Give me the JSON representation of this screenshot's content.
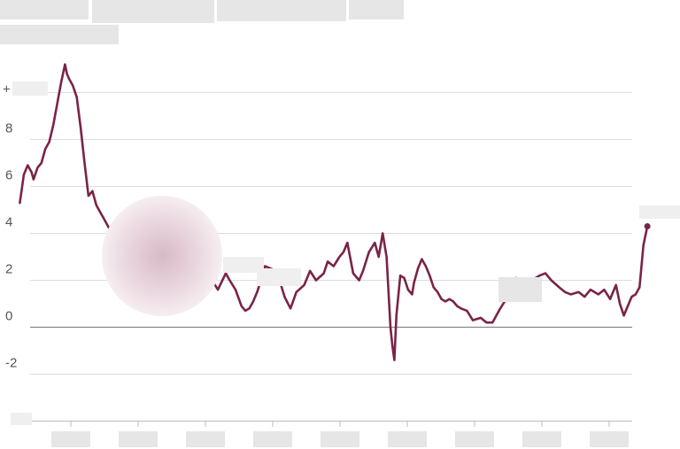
{
  "chart_data": {
    "type": "line",
    "title": "",
    "subtitle": "",
    "xlabel": "",
    "ylabel": "",
    "ylim": [
      -4,
      11.5
    ],
    "xlim": [
      1989.3,
      2021.9
    ],
    "yticks": [
      {
        "value": 8,
        "label": "8"
      },
      {
        "value": 6,
        "label": "6"
      },
      {
        "value": 4,
        "label": "4"
      },
      {
        "value": 2,
        "label": "2"
      },
      {
        "value": 0,
        "label": "0"
      },
      {
        "value": -2,
        "label": "-2"
      }
    ],
    "top_tick_prefix": "+",
    "end_label_prefix": "+",
    "grid": true,
    "line_color": "#7a2348",
    "series": [
      {
        "x": [
          1989.5,
          1989.7,
          1989.9,
          1990.1,
          1990.2,
          1990.4,
          1990.6,
          1990.8,
          1991.0,
          1991.2,
          1991.4,
          1991.6,
          1991.8,
          1991.9,
          1992.0,
          1992.2,
          1992.4,
          1992.6,
          1992.8,
          1993.0,
          1993.2,
          1993.4,
          1993.6,
          1993.8,
          1994.0,
          1994.3,
          1994.6,
          1995.0,
          1995.3,
          1995.6,
          1996.0,
          1996.2,
          1996.4,
          1996.6,
          1996.8,
          1997.0,
          1997.3,
          1997.6,
          1998.0,
          1998.4,
          1998.8,
          1999.0,
          1999.3,
          1999.6,
          2000.0,
          2000.2,
          2000.5,
          2000.8,
          2001.0,
          2001.2,
          2001.4,
          2001.6,
          2001.8,
          2002.0,
          2002.3,
          2002.6,
          2003.0,
          2003.3,
          2003.6,
          2004.0,
          2004.3,
          2004.6,
          2005.0,
          2005.2,
          2005.5,
          2005.8,
          2006.0,
          2006.2,
          2006.5,
          2006.8,
          2007.0,
          2007.3,
          2007.6,
          2007.8,
          2008.0,
          2008.2,
          2008.4,
          2008.5,
          2008.6,
          2008.7,
          2008.9,
          2009.1,
          2009.3,
          2009.5,
          2009.6,
          2009.8,
          2010.0,
          2010.2,
          2010.4,
          2010.6,
          2010.8,
          2011.0,
          2011.2,
          2011.4,
          2011.6,
          2011.8,
          2012.0,
          2012.3,
          2012.6,
          2013.0,
          2013.3,
          2013.6,
          2014.0,
          2014.3,
          2014.6,
          2014.8,
          2015.0,
          2015.2,
          2015.4,
          2015.6,
          2015.8,
          2016.0,
          2016.3,
          2016.6,
          2017.0,
          2017.3,
          2017.6,
          2018.0,
          2018.3,
          2018.6,
          2019.0,
          2019.3,
          2019.6,
          2019.9,
          2020.1,
          2020.3,
          2020.5,
          2020.7,
          2020.9,
          2021.1,
          2021.3,
          2021.5
        ],
        "y": [
          5.3,
          6.5,
          6.9,
          6.6,
          6.3,
          6.8,
          7.0,
          7.6,
          7.9,
          8.6,
          9.5,
          10.4,
          11.2,
          10.8,
          10.6,
          10.3,
          9.8,
          8.5,
          7.0,
          5.6,
          5.8,
          5.2,
          4.9,
          4.6,
          4.3,
          3.8,
          3.5,
          3.2,
          3.0,
          2.9,
          3.0,
          3.5,
          4.1,
          4.5,
          5.2,
          4.7,
          3.8,
          3.1,
          2.9,
          2.7,
          2.6,
          2.4,
          2.0,
          1.6,
          2.3,
          2.0,
          1.6,
          0.9,
          0.7,
          0.8,
          1.1,
          1.5,
          2.0,
          2.6,
          2.5,
          2.4,
          1.3,
          0.8,
          1.5,
          1.8,
          2.4,
          2.0,
          2.3,
          2.8,
          2.6,
          3.0,
          3.2,
          3.6,
          2.3,
          2.0,
          2.4,
          3.2,
          3.6,
          3.0,
          4.0,
          3.0,
          0.0,
          -0.8,
          -1.4,
          0.5,
          2.2,
          2.1,
          1.6,
          1.4,
          1.9,
          2.5,
          2.9,
          2.6,
          2.2,
          1.7,
          1.5,
          1.2,
          1.1,
          1.2,
          1.1,
          0.9,
          0.8,
          0.7,
          0.3,
          0.4,
          0.2,
          0.2,
          0.8,
          1.2,
          1.7,
          2.1,
          1.8,
          1.6,
          2.0,
          1.7,
          2.1,
          2.2,
          2.3,
          2.0,
          1.7,
          1.5,
          1.4,
          1.5,
          1.3,
          1.6,
          1.4,
          1.6,
          1.2,
          1.8,
          1.0,
          0.5,
          0.9,
          1.3,
          1.4,
          1.7,
          3.5,
          4.3
        ]
      }
    ]
  }
}
